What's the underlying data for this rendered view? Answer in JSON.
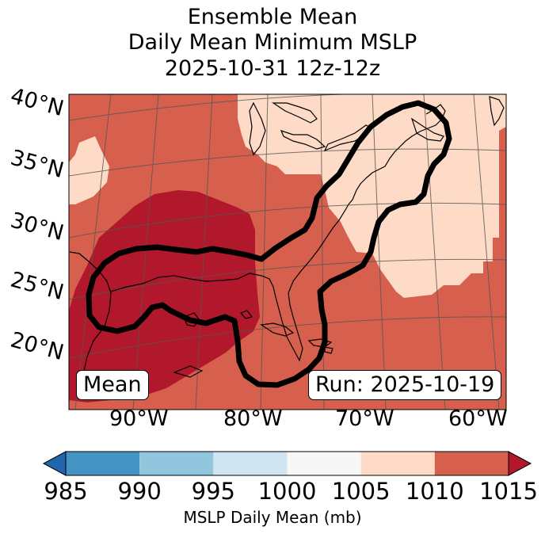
{
  "title": {
    "line1": "Ensemble Mean",
    "line2": "Daily Mean Minimum MSLP",
    "line3": "2025-10-31 12z-12z"
  },
  "map": {
    "lat_labels": [
      "40°N",
      "35°N",
      "30°N",
      "25°N",
      "20°N"
    ],
    "lon_labels": [
      "90°W",
      "80°W",
      "70°W",
      "60°W"
    ],
    "left_box": "Mean",
    "right_box": "Run: 2025-10-19",
    "contour_color": "#000000",
    "coastline_color": "#000000",
    "gridline_color": "#555555"
  },
  "colorbar": {
    "label": "MSLP Daily Mean (mb)",
    "ticks": [
      "985",
      "990",
      "995",
      "1000",
      "1005",
      "1010",
      "1015"
    ],
    "bins": [
      {
        "range": "<985",
        "color": "#2166ac"
      },
      {
        "range": "985-990",
        "color": "#4393c3"
      },
      {
        "range": "990-995",
        "color": "#92c5de"
      },
      {
        "range": "995-1000",
        "color": "#d1e5f0"
      },
      {
        "range": "1000-1005",
        "color": "#f7f7f7"
      },
      {
        "range": "1005-1010",
        "color": "#fddbc7"
      },
      {
        "range": "1010-1015",
        "color": "#d6604d"
      },
      {
        "range": ">1015",
        "color": "#b2182b"
      }
    ]
  }
}
